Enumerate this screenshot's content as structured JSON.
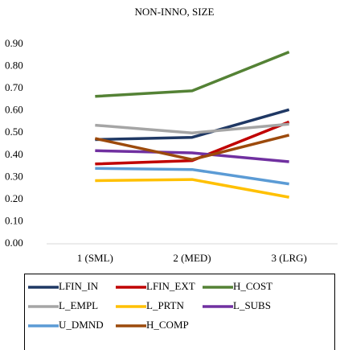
{
  "chart_data": {
    "type": "line",
    "title": "NON-INNO, SIZE",
    "categories": [
      "1 (SML)",
      "2 (MED)",
      "3 (LRG)"
    ],
    "series": [
      {
        "name": "LFIN_IN",
        "color": "#1f3864",
        "values": [
          0.47,
          0.48,
          0.605
        ]
      },
      {
        "name": "LFIN_EXT",
        "color": "#c00000",
        "values": [
          0.36,
          0.375,
          0.55
        ]
      },
      {
        "name": "H_COST",
        "color": "#548235",
        "values": [
          0.665,
          0.69,
          0.865
        ]
      },
      {
        "name": "L_EMPL",
        "color": "#a5a5a5",
        "values": [
          0.535,
          0.5,
          0.54
        ]
      },
      {
        "name": "L_PRTN",
        "color": "#ffc000",
        "values": [
          0.285,
          0.29,
          0.21
        ]
      },
      {
        "name": "L_SUBS",
        "color": "#7030a0",
        "values": [
          0.42,
          0.41,
          0.37
        ]
      },
      {
        "name": "U_DMND",
        "color": "#5b9bd5",
        "values": [
          0.34,
          0.335,
          0.27
        ]
      },
      {
        "name": "H_COMP",
        "color": "#9c4a0c",
        "values": [
          0.475,
          0.38,
          0.49
        ]
      }
    ],
    "ylim": [
      0,
      0.9
    ],
    "yticks": [
      {
        "value": 0,
        "label": "0.00"
      },
      {
        "value": 0.1,
        "label": "0.10"
      },
      {
        "value": 0.2,
        "label": "0.20"
      },
      {
        "value": 0.3,
        "label": "0.30"
      },
      {
        "value": 0.4,
        "label": "0.40"
      },
      {
        "value": 0.5,
        "label": "0.50"
      },
      {
        "value": 0.6,
        "label": "0.60"
      },
      {
        "value": 0.7,
        "label": "0.70"
      },
      {
        "value": 0.8,
        "label": "0.80"
      },
      {
        "value": 0.9,
        "label": "0.90"
      }
    ],
    "grid": false,
    "legend": "bottom"
  }
}
